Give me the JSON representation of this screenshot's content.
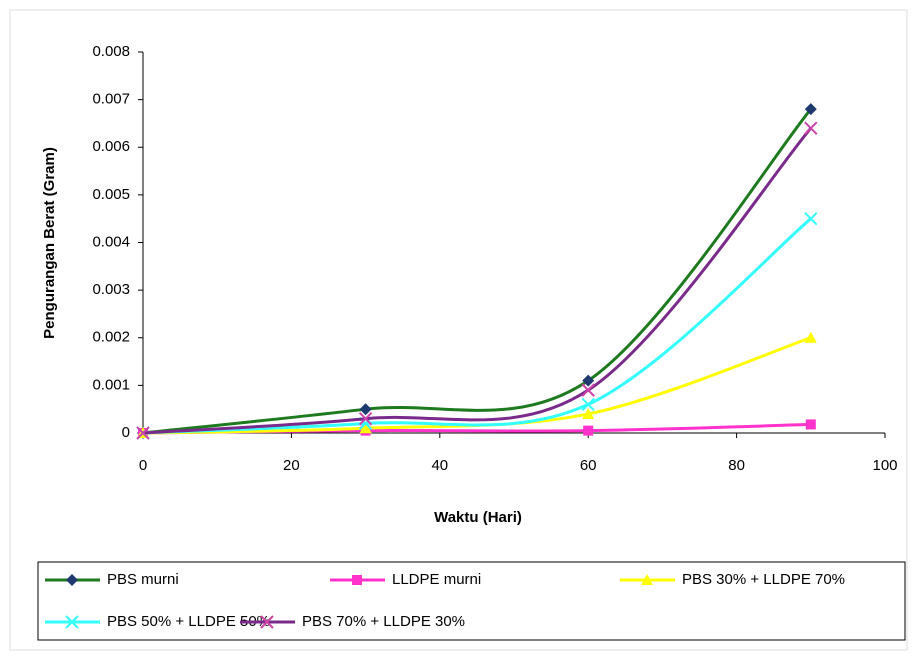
{
  "chart_data": {
    "type": "line",
    "x_label": "Waktu (Hari)",
    "y_label": "Pengurangan Berat (Gram)",
    "x": [
      0,
      30,
      60,
      90
    ],
    "xlim": [
      0,
      100
    ],
    "xticks": [
      0,
      20,
      40,
      60,
      80,
      100
    ],
    "ylim": [
      0,
      0.008
    ],
    "yticks": [
      0,
      0.001,
      0.002,
      0.003,
      0.004,
      0.005,
      0.006,
      0.007,
      0.008
    ],
    "smooth": true,
    "legend": "bottom",
    "series": [
      {
        "name": "PBS murni",
        "color": "#1e7a1e",
        "marker": "diamond",
        "marker_color": "#1f3a6e",
        "values": [
          0,
          0.0005,
          0.0011,
          0.0068
        ]
      },
      {
        "name": "LLDPE murni",
        "color": "#ff33cc",
        "marker": "square",
        "marker_color": "#ff33cc",
        "values": [
          0,
          5e-05,
          5e-05,
          0.00018
        ]
      },
      {
        "name": "PBS 30% + LLDPE 70%",
        "color": "#ffff00",
        "marker": "triangle",
        "marker_color": "#ffff00",
        "values": [
          0,
          0.0001,
          0.0004,
          0.002
        ]
      },
      {
        "name": "PBS 50% + LLDPE 50%",
        "color": "#33ffff",
        "marker": "x",
        "marker_color": "#33ffff",
        "values": [
          0,
          0.0002,
          0.0006,
          0.0045
        ]
      },
      {
        "name": "PBS 70% + LLDPE 30%",
        "color": "#7a2a8a",
        "marker": "x",
        "marker_color": "#cc44aa",
        "values": [
          0,
          0.0003,
          0.0009,
          0.0064
        ]
      }
    ]
  }
}
